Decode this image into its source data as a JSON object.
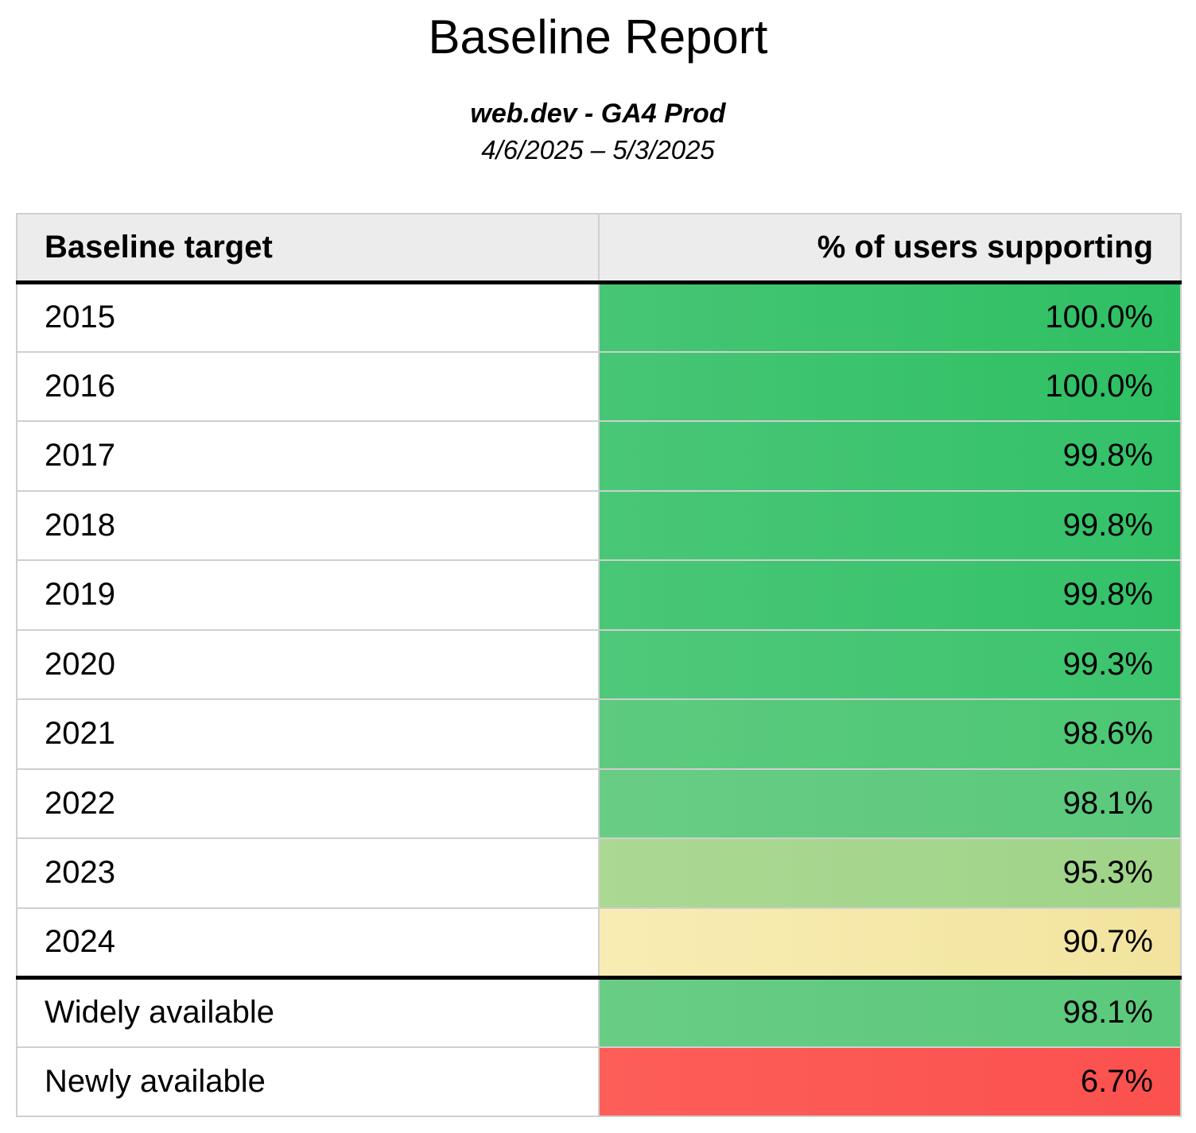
{
  "page": {
    "title": "Baseline Report",
    "subtitle": "web.dev - GA4 Prod",
    "date_range": "4/6/2025 – 5/3/2025"
  },
  "colors": {
    "header_bg": "#ececec",
    "grid_border": "#cfcfcf",
    "section_rule": "#000000",
    "text": "#000000",
    "scale_high_green": "#2ebf63",
    "scale_mid_green": "#9fd488",
    "scale_yellow": "#f2e49e",
    "scale_red": "#fb514e"
  },
  "table": {
    "headers": {
      "target": "Baseline target",
      "value": "% of users supporting"
    },
    "rows": [
      {
        "target": "2015",
        "value": "100.0%",
        "bg": "linear-gradient(90deg, #46c675, #2ebf63)"
      },
      {
        "target": "2016",
        "value": "100.0%",
        "bg": "linear-gradient(90deg, #46c675, #2ebf63)"
      },
      {
        "target": "2017",
        "value": "99.8%",
        "bg": "linear-gradient(90deg, #49c777, #33c168)"
      },
      {
        "target": "2018",
        "value": "99.8%",
        "bg": "linear-gradient(90deg, #49c777, #33c168)"
      },
      {
        "target": "2019",
        "value": "99.8%",
        "bg": "linear-gradient(90deg, #49c777, #33c168)"
      },
      {
        "target": "2020",
        "value": "99.3%",
        "bg": "linear-gradient(90deg, #4fc87a, #3cc46d)"
      },
      {
        "target": "2021",
        "value": "98.6%",
        "bg": "linear-gradient(90deg, #5dca7f, #4bc773)"
      },
      {
        "target": "2022",
        "value": "98.1%",
        "bg": "linear-gradient(90deg, #69cc85, #5ac97b)"
      },
      {
        "target": "2023",
        "value": "95.3%",
        "bg": "linear-gradient(90deg, #abd893, #9fd488)"
      },
      {
        "target": "2024",
        "value": "90.7%",
        "bg": "linear-gradient(90deg, #f8ecb3, #f2e49e)"
      },
      {
        "target": "Widely available",
        "value": "98.1%",
        "bg": "linear-gradient(90deg, #69cc85, #5ac97b)"
      },
      {
        "target": "Newly available",
        "value": "6.7%",
        "bg": "linear-gradient(90deg, #fd5e58, #fb514e)"
      }
    ]
  },
  "chart_data": {
    "type": "table",
    "title": "Baseline Report",
    "subtitle": "web.dev - GA4 Prod",
    "date_range": "4/6/2025 – 5/3/2025",
    "columns": [
      "Baseline target",
      "% of users supporting"
    ],
    "categories": [
      "2015",
      "2016",
      "2017",
      "2018",
      "2019",
      "2020",
      "2021",
      "2022",
      "2023",
      "2024",
      "Widely available",
      "Newly available"
    ],
    "values": [
      100.0,
      100.0,
      99.8,
      99.8,
      99.8,
      99.3,
      98.6,
      98.1,
      95.3,
      90.7,
      98.1,
      6.7
    ],
    "value_unit": "percent",
    "layout_hints": {
      "value_cells_colored": "red-to-yellow-to-green scale by value",
      "heavy_rule_below_header": true,
      "heavy_rule_above_row": "Widely available",
      "value_column_alignment": "right"
    }
  }
}
